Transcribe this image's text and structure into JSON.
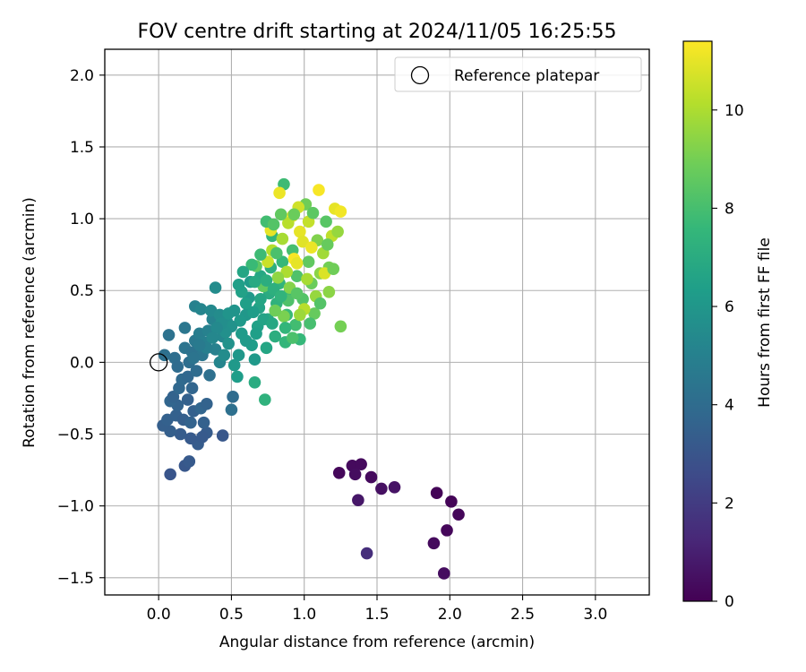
{
  "chart_data": {
    "type": "scatter",
    "title": "FOV centre drift starting at 2024/11/05 16:25:55",
    "xlabel": "Angular distance from reference (arcmin)",
    "ylabel": "Rotation from reference (arcmin)",
    "xlim": [
      -0.37,
      3.37
    ],
    "ylim": [
      -1.62,
      2.18
    ],
    "x_ticks": [
      0.0,
      0.5,
      1.0,
      1.5,
      2.0,
      2.5,
      3.0
    ],
    "x_tick_labels": [
      "0.0",
      "0.5",
      "1.0",
      "1.5",
      "2.0",
      "2.5",
      "3.0"
    ],
    "y_ticks": [
      -1.5,
      -1.0,
      -0.5,
      0.0,
      0.5,
      1.0,
      1.5,
      2.0
    ],
    "y_tick_labels": [
      "−1.5",
      "−1.0",
      "−0.5",
      "0.0",
      "0.5",
      "1.0",
      "1.5",
      "2.0"
    ],
    "grid": true,
    "legend": {
      "placement": "top-right",
      "entries": [
        {
          "label": "Reference platepar",
          "marker": "open-circle"
        }
      ]
    },
    "reference_point": {
      "x": 0.0,
      "y": 0.0
    },
    "colorbar": {
      "label": "Hours from first FF file",
      "colormap": "viridis",
      "range": [
        0,
        11.4
      ],
      "ticks": [
        0,
        2,
        4,
        6,
        8,
        10
      ],
      "tick_labels": [
        "0",
        "2",
        "4",
        "6",
        "8",
        "10"
      ]
    },
    "points": [
      {
        "x": 1.24,
        "y": -0.77,
        "c": 0.2
      },
      {
        "x": 1.33,
        "y": -0.72,
        "c": 0.3
      },
      {
        "x": 1.39,
        "y": -0.71,
        "c": 0.3
      },
      {
        "x": 1.35,
        "y": -0.78,
        "c": 0.4
      },
      {
        "x": 1.46,
        "y": -0.8,
        "c": 0.3
      },
      {
        "x": 1.53,
        "y": -0.88,
        "c": 0.5
      },
      {
        "x": 1.62,
        "y": -0.87,
        "c": 0.6
      },
      {
        "x": 1.37,
        "y": -0.96,
        "c": 0.7
      },
      {
        "x": 1.91,
        "y": -0.91,
        "c": 0.1
      },
      {
        "x": 2.01,
        "y": -0.97,
        "c": 0.1
      },
      {
        "x": 2.06,
        "y": -1.06,
        "c": 0.2
      },
      {
        "x": 1.98,
        "y": -1.17,
        "c": 0.2
      },
      {
        "x": 1.89,
        "y": -1.26,
        "c": 0.3
      },
      {
        "x": 1.96,
        "y": -1.47,
        "c": 0.4
      },
      {
        "x": 1.43,
        "y": -1.33,
        "c": 1.5
      },
      {
        "x": 0.08,
        "y": -0.78,
        "c": 3.0
      },
      {
        "x": 0.18,
        "y": -0.72,
        "c": 3.1
      },
      {
        "x": 0.21,
        "y": -0.69,
        "c": 3.2
      },
      {
        "x": 0.27,
        "y": -0.57,
        "c": 3.3
      },
      {
        "x": 0.22,
        "y": -0.53,
        "c": 3.2
      },
      {
        "x": 0.15,
        "y": -0.5,
        "c": 3.3
      },
      {
        "x": 0.08,
        "y": -0.48,
        "c": 3.4
      },
      {
        "x": 0.44,
        "y": -0.51,
        "c": 3.1
      },
      {
        "x": 0.33,
        "y": -0.49,
        "c": 3.3
      },
      {
        "x": 0.3,
        "y": -0.52,
        "c": 3.2
      },
      {
        "x": 0.03,
        "y": -0.44,
        "c": 3.4
      },
      {
        "x": 0.06,
        "y": -0.4,
        "c": 3.5
      },
      {
        "x": 0.12,
        "y": -0.37,
        "c": 3.5
      },
      {
        "x": 0.17,
        "y": -0.4,
        "c": 3.4
      },
      {
        "x": 0.22,
        "y": -0.42,
        "c": 3.6
      },
      {
        "x": 0.31,
        "y": -0.42,
        "c": 3.5
      },
      {
        "x": 0.13,
        "y": -0.3,
        "c": 3.6
      },
      {
        "x": 0.08,
        "y": -0.27,
        "c": 3.7
      },
      {
        "x": 0.1,
        "y": -0.24,
        "c": 3.6
      },
      {
        "x": 0.2,
        "y": -0.26,
        "c": 3.5
      },
      {
        "x": 0.24,
        "y": -0.34,
        "c": 3.5
      },
      {
        "x": 0.29,
        "y": -0.32,
        "c": 3.7
      },
      {
        "x": 0.14,
        "y": -0.18,
        "c": 3.8
      },
      {
        "x": 0.16,
        "y": -0.12,
        "c": 3.9
      },
      {
        "x": 0.2,
        "y": -0.1,
        "c": 3.8
      },
      {
        "x": 0.23,
        "y": -0.18,
        "c": 3.7
      },
      {
        "x": 0.26,
        "y": -0.06,
        "c": 4.0
      },
      {
        "x": 0.33,
        "y": -0.29,
        "c": 3.6
      },
      {
        "x": 0.04,
        "y": 0.05,
        "c": 4.2
      },
      {
        "x": 0.07,
        "y": 0.19,
        "c": 4.3
      },
      {
        "x": 0.11,
        "y": 0.03,
        "c": 4.1
      },
      {
        "x": 0.13,
        "y": -0.03,
        "c": 4.0
      },
      {
        "x": 0.18,
        "y": 0.1,
        "c": 4.4
      },
      {
        "x": 0.18,
        "y": 0.24,
        "c": 4.5
      },
      {
        "x": 0.21,
        "y": 0.0,
        "c": 4.1
      },
      {
        "x": 0.23,
        "y": 0.07,
        "c": 4.3
      },
      {
        "x": 0.25,
        "y": 0.15,
        "c": 4.6
      },
      {
        "x": 0.28,
        "y": 0.2,
        "c": 4.8
      },
      {
        "x": 0.3,
        "y": 0.05,
        "c": 4.5
      },
      {
        "x": 0.31,
        "y": 0.14,
        "c": 4.9
      },
      {
        "x": 0.34,
        "y": 0.22,
        "c": 5.0
      },
      {
        "x": 0.35,
        "y": -0.09,
        "c": 4.2
      },
      {
        "x": 0.37,
        "y": 0.3,
        "c": 5.1
      },
      {
        "x": 0.39,
        "y": 0.09,
        "c": 5.0
      },
      {
        "x": 0.42,
        "y": 0.0,
        "c": 5.2
      },
      {
        "x": 0.44,
        "y": 0.18,
        "c": 5.3
      },
      {
        "x": 0.25,
        "y": 0.39,
        "c": 5.0
      },
      {
        "x": 0.29,
        "y": 0.37,
        "c": 5.2
      },
      {
        "x": 0.39,
        "y": 0.52,
        "c": 5.5
      },
      {
        "x": 0.36,
        "y": 0.36,
        "c": 5.4
      },
      {
        "x": 0.42,
        "y": 0.33,
        "c": 5.5
      },
      {
        "x": 0.47,
        "y": 0.28,
        "c": 5.6
      },
      {
        "x": 0.51,
        "y": -0.24,
        "c": 4.0
      },
      {
        "x": 0.5,
        "y": -0.33,
        "c": 4.2
      },
      {
        "x": 0.48,
        "y": 0.13,
        "c": 5.8
      },
      {
        "x": 0.52,
        "y": -0.02,
        "c": 6.1
      },
      {
        "x": 0.55,
        "y": 0.05,
        "c": 6.0
      },
      {
        "x": 0.54,
        "y": -0.1,
        "c": 6.3
      },
      {
        "x": 0.57,
        "y": 0.2,
        "c": 6.2
      },
      {
        "x": 0.6,
        "y": 0.33,
        "c": 6.0
      },
      {
        "x": 0.62,
        "y": 0.45,
        "c": 6.1
      },
      {
        "x": 0.63,
        "y": 0.56,
        "c": 6.2
      },
      {
        "x": 0.64,
        "y": 0.12,
        "c": 6.3
      },
      {
        "x": 0.66,
        "y": 0.02,
        "c": 6.1
      },
      {
        "x": 0.66,
        "y": -0.14,
        "c": 7.0
      },
      {
        "x": 0.68,
        "y": 0.25,
        "c": 6.5
      },
      {
        "x": 0.69,
        "y": 0.38,
        "c": 6.6
      },
      {
        "x": 0.7,
        "y": 0.6,
        "c": 6.8
      },
      {
        "x": 0.73,
        "y": -0.26,
        "c": 7.3
      },
      {
        "x": 0.74,
        "y": 0.1,
        "c": 6.7
      },
      {
        "x": 0.75,
        "y": 0.3,
        "c": 6.9
      },
      {
        "x": 0.76,
        "y": 0.48,
        "c": 7.0
      },
      {
        "x": 0.77,
        "y": 0.66,
        "c": 7.2
      },
      {
        "x": 0.78,
        "y": 0.88,
        "c": 7.5
      },
      {
        "x": 0.8,
        "y": 0.18,
        "c": 7.1
      },
      {
        "x": 0.81,
        "y": 0.41,
        "c": 7.3
      },
      {
        "x": 0.83,
        "y": 0.55,
        "c": 7.4
      },
      {
        "x": 0.85,
        "y": 0.7,
        "c": 7.6
      },
      {
        "x": 0.86,
        "y": 1.24,
        "c": 7.8
      },
      {
        "x": 0.87,
        "y": 0.14,
        "c": 7.5
      },
      {
        "x": 0.88,
        "y": 0.33,
        "c": 7.7
      },
      {
        "x": 0.9,
        "y": 0.49,
        "c": 7.8
      },
      {
        "x": 0.92,
        "y": 0.78,
        "c": 8.0
      },
      {
        "x": 0.94,
        "y": 0.26,
        "c": 7.9
      },
      {
        "x": 0.95,
        "y": 0.6,
        "c": 8.2
      },
      {
        "x": 0.97,
        "y": 0.16,
        "c": 7.6
      },
      {
        "x": 0.99,
        "y": 0.44,
        "c": 8.3
      },
      {
        "x": 1.01,
        "y": 1.1,
        "c": 8.9
      },
      {
        "x": 1.03,
        "y": 0.7,
        "c": 8.6
      },
      {
        "x": 1.05,
        "y": 0.55,
        "c": 8.8
      },
      {
        "x": 1.07,
        "y": 0.34,
        "c": 8.7
      },
      {
        "x": 1.09,
        "y": 0.85,
        "c": 9.2
      },
      {
        "x": 1.11,
        "y": 0.62,
        "c": 9.4
      },
      {
        "x": 1.13,
        "y": 0.76,
        "c": 9.8
      },
      {
        "x": 1.15,
        "y": 0.98,
        "c": 8.4
      },
      {
        "x": 1.17,
        "y": 0.66,
        "c": 9.0
      },
      {
        "x": 1.19,
        "y": 0.88,
        "c": 10.3
      },
      {
        "x": 1.21,
        "y": 1.07,
        "c": 11.0
      },
      {
        "x": 1.23,
        "y": 0.91,
        "c": 9.6
      },
      {
        "x": 1.25,
        "y": 0.25,
        "c": 9.0
      },
      {
        "x": 1.25,
        "y": 1.05,
        "c": 11.2
      },
      {
        "x": 1.1,
        "y": 1.2,
        "c": 11.3
      },
      {
        "x": 0.83,
        "y": 1.18,
        "c": 11.1
      },
      {
        "x": 0.77,
        "y": 0.92,
        "c": 11.0
      },
      {
        "x": 0.92,
        "y": 1.02,
        "c": 11.2
      },
      {
        "x": 0.97,
        "y": 0.91,
        "c": 11.0
      },
      {
        "x": 0.99,
        "y": 0.84,
        "c": 10.9
      },
      {
        "x": 1.05,
        "y": 0.8,
        "c": 11.1
      },
      {
        "x": 0.93,
        "y": 0.72,
        "c": 11.3
      },
      {
        "x": 0.95,
        "y": 0.69,
        "c": 11.0
      },
      {
        "x": 1.14,
        "y": 0.62,
        "c": 10.8
      },
      {
        "x": 0.96,
        "y": 1.08,
        "c": 10.6
      },
      {
        "x": 0.89,
        "y": 0.97,
        "c": 10.2
      },
      {
        "x": 1.03,
        "y": 0.98,
        "c": 10.4
      },
      {
        "x": 0.85,
        "y": 0.86,
        "c": 9.9
      },
      {
        "x": 0.78,
        "y": 0.78,
        "c": 10.1
      },
      {
        "x": 0.88,
        "y": 0.63,
        "c": 10.0
      },
      {
        "x": 1.0,
        "y": 0.37,
        "c": 10.2
      },
      {
        "x": 0.97,
        "y": 0.33,
        "c": 9.7
      },
      {
        "x": 0.75,
        "y": 0.7,
        "c": 10.5
      },
      {
        "x": 0.82,
        "y": 0.59,
        "c": 9.5
      },
      {
        "x": 0.9,
        "y": 0.52,
        "c": 9.3
      },
      {
        "x": 0.86,
        "y": 0.32,
        "c": 9.1
      },
      {
        "x": 1.08,
        "y": 0.46,
        "c": 9.6
      },
      {
        "x": 1.17,
        "y": 0.49,
        "c": 9.4
      },
      {
        "x": 1.02,
        "y": 0.58,
        "c": 9.9
      },
      {
        "x": 0.8,
        "y": 0.36,
        "c": 8.9
      },
      {
        "x": 0.72,
        "y": 0.53,
        "c": 8.6
      },
      {
        "x": 0.67,
        "y": 0.67,
        "c": 8.5
      },
      {
        "x": 0.74,
        "y": 0.98,
        "c": 7.9
      },
      {
        "x": 0.79,
        "y": 0.96,
        "c": 8.3
      },
      {
        "x": 0.84,
        "y": 1.03,
        "c": 8.6
      },
      {
        "x": 0.93,
        "y": 1.03,
        "c": 8.8
      },
      {
        "x": 1.06,
        "y": 1.04,
        "c": 8.5
      },
      {
        "x": 1.16,
        "y": 0.82,
        "c": 8.7
      },
      {
        "x": 1.2,
        "y": 0.65,
        "c": 8.9
      },
      {
        "x": 1.11,
        "y": 0.41,
        "c": 8.3
      },
      {
        "x": 1.04,
        "y": 0.27,
        "c": 8.0
      },
      {
        "x": 0.92,
        "y": 0.17,
        "c": 8.1
      },
      {
        "x": 0.89,
        "y": 0.43,
        "c": 8.2
      },
      {
        "x": 0.95,
        "y": 0.48,
        "c": 8.4
      },
      {
        "x": 0.64,
        "y": 0.68,
        "c": 7.7
      },
      {
        "x": 0.7,
        "y": 0.75,
        "c": 7.8
      },
      {
        "x": 0.81,
        "y": 0.76,
        "c": 8.1
      },
      {
        "x": 0.57,
        "y": 0.49,
        "c": 6.5
      },
      {
        "x": 0.6,
        "y": 0.41,
        "c": 6.4
      },
      {
        "x": 0.65,
        "y": 0.35,
        "c": 6.3
      },
      {
        "x": 0.7,
        "y": 0.44,
        "c": 6.7
      },
      {
        "x": 0.72,
        "y": 0.3,
        "c": 6.6
      },
      {
        "x": 0.78,
        "y": 0.27,
        "c": 6.8
      },
      {
        "x": 0.67,
        "y": 0.2,
        "c": 6.4
      },
      {
        "x": 0.6,
        "y": 0.15,
        "c": 6.2
      },
      {
        "x": 0.56,
        "y": 0.29,
        "c": 6.1
      },
      {
        "x": 0.52,
        "y": 0.36,
        "c": 5.9
      },
      {
        "x": 0.5,
        "y": 0.25,
        "c": 5.8
      },
      {
        "x": 0.46,
        "y": 0.21,
        "c": 5.7
      },
      {
        "x": 0.43,
        "y": 0.27,
        "c": 5.6
      },
      {
        "x": 0.4,
        "y": 0.24,
        "c": 5.4
      },
      {
        "x": 0.37,
        "y": 0.17,
        "c": 5.3
      },
      {
        "x": 0.33,
        "y": 0.1,
        "c": 4.9
      },
      {
        "x": 0.28,
        "y": 0.12,
        "c": 4.7
      },
      {
        "x": 0.24,
        "y": 0.03,
        "c": 4.4
      },
      {
        "x": 0.45,
        "y": 0.05,
        "c": 5.5
      },
      {
        "x": 0.48,
        "y": 0.34,
        "c": 5.9
      },
      {
        "x": 0.55,
        "y": 0.54,
        "c": 6.4
      },
      {
        "x": 0.58,
        "y": 0.63,
        "c": 6.7
      },
      {
        "x": 0.66,
        "y": 0.56,
        "c": 6.9
      },
      {
        "x": 0.74,
        "y": 0.57,
        "c": 7.1
      },
      {
        "x": 0.79,
        "y": 0.51,
        "c": 7.2
      },
      {
        "x": 0.84,
        "y": 0.46,
        "c": 7.4
      },
      {
        "x": 0.87,
        "y": 0.24,
        "c": 7.5
      }
    ]
  }
}
